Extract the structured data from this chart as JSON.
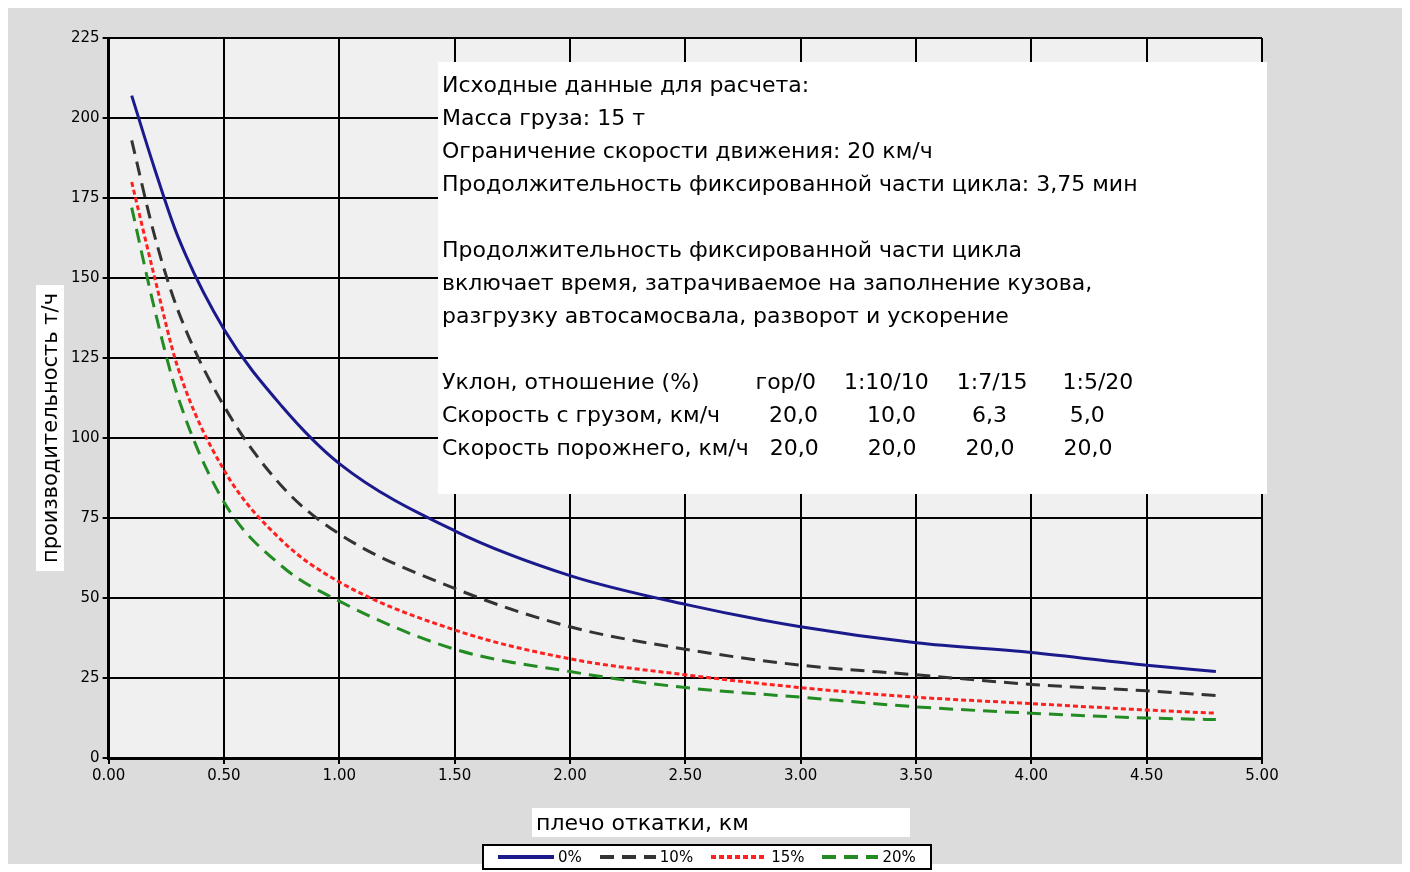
{
  "chart_data": {
    "type": "line",
    "xlabel": "плечо откатки, км",
    "ylabel": "производительность т/ч",
    "annotations": [
      "Исходные данные для расчета:",
      "Масса груза: 15 т",
      "Ограничение скорости движения: 20 км/ч",
      "Продолжительность фиксированной части цикла: 3,75 мин",
      "Продолжительность фиксированной части цикла",
      "включает время, затрачиваемое на заполнение кузова,",
      "разгрузку автосамосвала, разворот и ускорение",
      "Уклон, отношение (%)        гор/0    1:10/10    1:7/15     1:5/20",
      "Скорость с грузом, км/ч       20,0       10,0        6,3         5,0",
      "Скорость порожнего, км/ч   20,0       20,0       20,0       20,0"
    ],
    "x": [
      0.1,
      0.2,
      0.3,
      0.5,
      0.75,
      1.0,
      1.5,
      2.0,
      2.5,
      3.0,
      3.5,
      4.0,
      4.5,
      4.8
    ],
    "xlim": [
      0,
      5
    ],
    "xticks": [
      {
        "value": 0,
        "label": "0.00"
      },
      {
        "value": 0.5,
        "label": "0.50"
      },
      {
        "value": 1,
        "label": "1.00"
      },
      {
        "value": 1.5,
        "label": "1.50"
      },
      {
        "value": 2,
        "label": "2.00"
      },
      {
        "value": 2.5,
        "label": "2.50"
      },
      {
        "value": 3,
        "label": "3.00"
      },
      {
        "value": 3.5,
        "label": "3.50"
      },
      {
        "value": 4,
        "label": "4.00"
      },
      {
        "value": 4.5,
        "label": "4.50"
      },
      {
        "value": 5,
        "label": "5.00"
      }
    ],
    "ylim": [
      0,
      225
    ],
    "yticks": [
      0,
      25,
      50,
      75,
      100,
      125,
      150,
      175,
      200,
      225
    ],
    "grid": true,
    "legend": "bottom",
    "marker": "none",
    "series": [
      {
        "name": "0%",
        "color": "#1a1a8c",
        "line_style": "solid",
        "values": [
          207,
          184,
          163,
          134,
          110,
          92,
          71,
          57,
          48,
          41,
          36,
          33,
          29,
          27
        ]
      },
      {
        "name": "10%",
        "color": "#333333",
        "line_style": "dashed",
        "values": [
          193,
          163,
          140,
          110,
          85,
          70,
          53,
          41,
          34,
          29,
          26,
          23,
          21,
          19.5
        ]
      },
      {
        "name": "15%",
        "color": "#ff2020",
        "line_style": "dotted",
        "values": [
          180,
          150,
          122,
          90,
          68,
          55,
          40,
          31,
          26,
          22,
          19,
          17,
          15,
          14
        ]
      },
      {
        "name": "20%",
        "color": "#228b22",
        "line_style": "dashed",
        "values": [
          172,
          140,
          113,
          80,
          60,
          49,
          34,
          27,
          22,
          19,
          16,
          14,
          12.5,
          12
        ]
      }
    ]
  }
}
